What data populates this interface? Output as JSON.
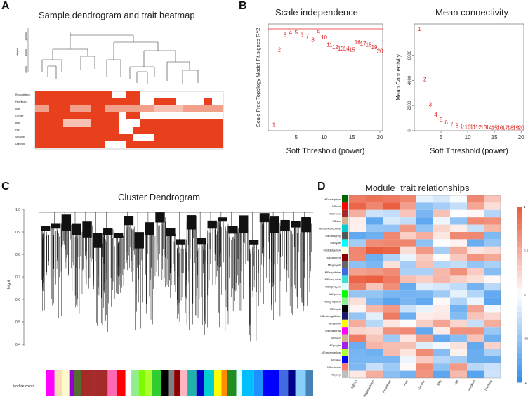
{
  "panels": {
    "a": {
      "letter": "A",
      "title": "Sample dendrogram and trait heatmap",
      "height_label": "Height",
      "y_ticks": [
        "100000",
        "50000",
        "20000"
      ],
      "traits": [
        "Regurgitation",
        "Heartburn",
        "Age",
        "Gender",
        "BMI",
        "Hot",
        "Smoking",
        "Drinking"
      ]
    },
    "b": {
      "letter": "B",
      "scale_title": "Scale independence",
      "scale_ylabel": "Scale Free Topology Model Fit,signed R^2",
      "scale_xlabel": "Soft Threshold (power)",
      "mean_title": "Mean connectivity",
      "mean_ylabel": "Mean Connectivity",
      "mean_xlabel": "Soft Threshold (power)"
    },
    "c": {
      "letter": "C",
      "title": "Cluster Dendrogram",
      "ylabel": "Height",
      "y_ticks": [
        "1.0",
        "0.9",
        "0.8",
        "0.7",
        "0.6",
        "0.5",
        "0.4"
      ],
      "module_label": "Module colors"
    },
    "d": {
      "letter": "D",
      "title": "Module−trait relationships",
      "traits": [
        "RBMD",
        "Regurgitation",
        "Heartburn",
        "Age",
        "Gender",
        "BMI",
        "Hot",
        "Smoking",
        "Drinking"
      ],
      "modules": [
        "MEdarkgreen",
        "MEred",
        "MEbrown",
        "MEtan",
        "MEdarkturquoise",
        "MEdarkgrey",
        "MEcyan",
        "MElightyellow",
        "MEdarkred",
        "MEgrey60",
        "MEroyalblue",
        "MEturquoise",
        "MElightcyan",
        "MEgreen",
        "MElightgreen",
        "MEblack",
        "MEmidnightblue",
        "MEyellow",
        "MEmagenta",
        "MEtan2",
        "MEpurple",
        "MEgreenyellow",
        "MEblue",
        "MEsalmon",
        "MEgrey"
      ],
      "legend_ticks": [
        "1",
        "0.5",
        "0",
        "-0.5",
        "-1"
      ]
    }
  },
  "chart_data": [
    {
      "type": "scatter",
      "title": "Scale independence",
      "xlabel": "Soft Threshold (power)",
      "ylabel": "Scale Free Topology Model Fit,signed R^2",
      "x": [
        1,
        2,
        3,
        4,
        5,
        6,
        7,
        8,
        9,
        10,
        11,
        12,
        13,
        14,
        15,
        16,
        17,
        18,
        19,
        20
      ],
      "y": [
        0.1,
        0.71,
        0.83,
        0.85,
        0.85,
        0.83,
        0.82,
        0.79,
        0.85,
        0.81,
        0.75,
        0.73,
        0.72,
        0.72,
        0.71,
        0.77,
        0.76,
        0.75,
        0.73,
        0.7
      ],
      "hline": 0.88,
      "xlim": [
        1,
        20
      ],
      "ylim": [
        0.05,
        0.92
      ]
    },
    {
      "type": "scatter",
      "title": "Mean connectivity",
      "xlabel": "Soft Threshold (power)",
      "ylabel": "Mean Connectivity",
      "x": [
        1,
        2,
        3,
        4,
        5,
        6,
        7,
        8,
        9,
        10,
        11,
        12,
        13,
        14,
        15,
        16,
        17,
        18,
        19,
        20
      ],
      "y": [
        8100,
        4100,
        2100,
        1300,
        900,
        680,
        520,
        420,
        360,
        320,
        300,
        290,
        280,
        270,
        265,
        260,
        255,
        250,
        245,
        240
      ],
      "xlim": [
        1,
        20
      ],
      "ylim": [
        0,
        8500
      ]
    }
  ]
}
